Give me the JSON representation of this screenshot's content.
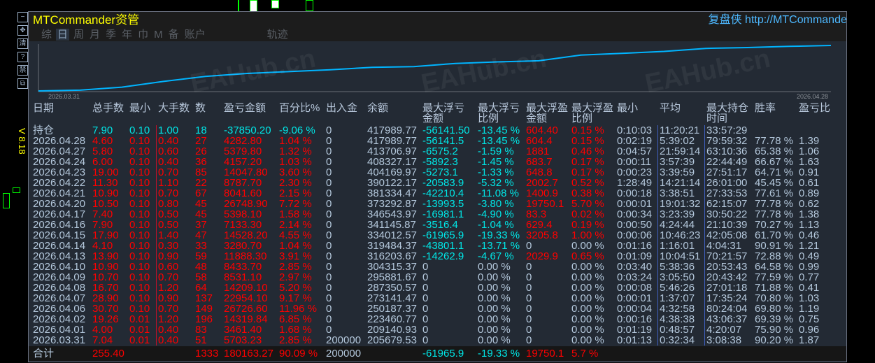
{
  "window": {
    "title": "MTCommander资管",
    "site": "复盘侠 http://MTCommander.com",
    "version": "V 8.18",
    "tabs": [
      {
        "label": "综",
        "active": false
      },
      {
        "label": "日",
        "active": true
      },
      {
        "label": "周",
        "active": false
      },
      {
        "label": "月",
        "active": false
      },
      {
        "label": "季",
        "active": false
      },
      {
        "label": "年",
        "active": false
      },
      {
        "label": "巾",
        "active": false
      },
      {
        "label": "M",
        "active": false
      },
      {
        "label": "备",
        "active": false
      },
      {
        "label": "账户",
        "active": false
      },
      {
        "label": "轨迹",
        "active": false
      }
    ],
    "side_buttons": [
      {
        "name": "minimize",
        "glyph": "−"
      },
      {
        "name": "move",
        "glyph": "✥"
      },
      {
        "name": "clear",
        "glyph": "清"
      },
      {
        "name": "help",
        "glyph": "?"
      },
      {
        "name": "disable",
        "glyph": "禁"
      },
      {
        "name": "restore",
        "glyph": "⧉"
      }
    ],
    "watermark": "EAHub.cn"
  },
  "equity_chart": {
    "start_label": "2026.03.31",
    "end_label": "2026.04.28",
    "line_color": "#00b4ff"
  },
  "colors": {
    "positive": "#ff0000",
    "negative": "#00e6e6",
    "neutral": "#b4c8dc",
    "title": "#ffff00",
    "link": "#4db8ff"
  },
  "table": {
    "headers": [
      "日期",
      "总手数",
      "最小",
      "大手数",
      "数",
      "盈亏金额",
      "百分比%",
      "出入金",
      "余额",
      "最大浮亏金额",
      "最大浮亏比例",
      "最大浮盈金额",
      "最大浮盈比例",
      "最小",
      "平均",
      "最大持仓时间",
      "胜率",
      "盈亏比"
    ],
    "rows": [
      [
        "持仓",
        "7.90",
        "0.10",
        "1.00",
        "18",
        "-37850.20",
        "-9.06 %",
        "0",
        "417989.77",
        "-56141.50",
        "-13.45 %",
        "604.40",
        "0.15 %",
        "0:10:03",
        "11:20:21",
        "33:57:29",
        "",
        ""
      ],
      [
        "2026.04.28",
        "4.60",
        "0.10",
        "0.40",
        "27",
        "4282.80",
        "1.04 %",
        "0",
        "417989.77",
        "-56141.5",
        "-13.45 %",
        "604.4",
        "0.15 %",
        "0:02:19",
        "5:39:02",
        "79:59:32",
        "77.78 %",
        "1.39"
      ],
      [
        "2026.04.27",
        "5.80",
        "0.10",
        "0.60",
        "26",
        "5379.80",
        "1.32 %",
        "0",
        "413706.97",
        "-6575.2",
        "-1.59 %",
        "1881",
        "0.46 %",
        "0:04:57",
        "21:59:14",
        "63:10:36",
        "65.38 %",
        "1.06"
      ],
      [
        "2026.04.24",
        "6.00",
        "0.10",
        "0.40",
        "36",
        "4157.20",
        "1.03 %",
        "0",
        "408327.17",
        "-5892.3",
        "-1.45 %",
        "683.7",
        "0.17 %",
        "0:00:11",
        "3:57:39",
        "22:44:49",
        "66.67 %",
        "1.63"
      ],
      [
        "2026.04.23",
        "19.00",
        "0.10",
        "0.70",
        "85",
        "14047.80",
        "3.60 %",
        "0",
        "404169.97",
        "-5273.1",
        "-1.33 %",
        "648.8",
        "0.17 %",
        "0:00:23",
        "3:39:59",
        "27:51:17",
        "64.71 %",
        "0.91"
      ],
      [
        "2026.04.22",
        "11.30",
        "0.10",
        "1.10",
        "22",
        "8787.70",
        "2.30 %",
        "0",
        "390122.17",
        "-20583.9",
        "-5.32 %",
        "2002.7",
        "0.52 %",
        "1:28:49",
        "14:21:14",
        "26:01:00",
        "45.45 %",
        "0.61"
      ],
      [
        "2026.04.21",
        "10.90",
        "0.10",
        "0.70",
        "67",
        "8041.60",
        "2.15 %",
        "0",
        "381334.47",
        "-42210.4",
        "-11.08 %",
        "1400.9",
        "0.38 %",
        "0:00:18",
        "3:38:51",
        "27:33:53",
        "77.61 %",
        "0.89"
      ],
      [
        "2026.04.20",
        "10.50",
        "0.10",
        "0.80",
        "45",
        "26748.90",
        "7.72 %",
        "0",
        "373292.87",
        "-13993.5",
        "-3.80 %",
        "19750.1",
        "5.70 %",
        "0:00:01",
        "19:01:32",
        "62:15:07",
        "77.78 %",
        "0.62"
      ],
      [
        "2026.04.17",
        "7.40",
        "0.10",
        "0.50",
        "45",
        "5398.10",
        "1.58 %",
        "0",
        "346543.97",
        "-16981.1",
        "-4.90 %",
        "83.3",
        "0.02 %",
        "0:00:34",
        "3:23:39",
        "30:50:22",
        "77.78 %",
        "1.38"
      ],
      [
        "2026.04.16",
        "7.90",
        "0.10",
        "0.50",
        "37",
        "7133.30",
        "2.14 %",
        "0",
        "341145.87",
        "-3516.4",
        "-1.04 %",
        "629.4",
        "0.19 %",
        "0:00:50",
        "4:24:44",
        "21:10:39",
        "70.27 %",
        "1.13"
      ],
      [
        "2026.04.15",
        "17.90",
        "0.10",
        "1.40",
        "47",
        "14528.20",
        "4.55 %",
        "0",
        "334012.57",
        "-61965.9",
        "-19.33 %",
        "3205.8",
        "1.00 %",
        "0:00:06",
        "10:46:23",
        "42:05:08",
        "61.70 %",
        "0.46"
      ],
      [
        "2026.04.14",
        "4.10",
        "0.10",
        "0.30",
        "33",
        "3280.70",
        "1.04 %",
        "0",
        "319484.37",
        "-43801.1",
        "-13.71 %",
        "0",
        "0.00 %",
        "0:01:16",
        "1:16:01",
        "4:04:31",
        "90.91 %",
        "1.21"
      ],
      [
        "2026.04.13",
        "13.90",
        "0.10",
        "0.90",
        "59",
        "11888.30",
        "3.91 %",
        "0",
        "316203.67",
        "-14262.9",
        "-4.67 %",
        "2029.9",
        "0.65 %",
        "0:01:09",
        "10:04:51",
        "70:21:57",
        "72.88 %",
        "0.49"
      ],
      [
        "2026.04.10",
        "10.90",
        "0.10",
        "0.60",
        "48",
        "8433.70",
        "2.85 %",
        "0",
        "304315.37",
        "0",
        "0.00 %",
        "0",
        "0.00 %",
        "0:03:40",
        "5:38:36",
        "20:53:43",
        "64.58 %",
        "0.99"
      ],
      [
        "2026.04.09",
        "10.70",
        "0.10",
        "0.70",
        "58",
        "8531.10",
        "2.97 %",
        "0",
        "295881.67",
        "0",
        "0.00 %",
        "0",
        "0.00 %",
        "0:03:24",
        "3:05:50",
        "20:43:42",
        "77.59 %",
        "0.77"
      ],
      [
        "2026.04.08",
        "16.70",
        "0.10",
        "1.20",
        "64",
        "14209.10",
        "5.20 %",
        "0",
        "287350.57",
        "0",
        "0.00 %",
        "0",
        "0.00 %",
        "0:00:08",
        "5:46:26",
        "27:01:18",
        "71.88 %",
        "0.41"
      ],
      [
        "2026.04.07",
        "28.90",
        "0.10",
        "0.90",
        "137",
        "22954.10",
        "9.17 %",
        "0",
        "273141.47",
        "0",
        "0.00 %",
        "0",
        "0.00 %",
        "0:00:01",
        "1:37:07",
        "17:35:24",
        "70.80 %",
        "1.03"
      ],
      [
        "2026.04.06",
        "30.70",
        "0.10",
        "0.70",
        "149",
        "26726.60",
        "11.96 %",
        "0",
        "250187.37",
        "0",
        "0.00 %",
        "0",
        "0.00 %",
        "0:00:04",
        "4:32:58",
        "80:24:04",
        "69.80 %",
        "1.19"
      ],
      [
        "2026.04.02",
        "19.26",
        "0.01",
        "1.20",
        "196",
        "14319.84",
        "6.85 %",
        "0",
        "223460.77",
        "0",
        "0.00 %",
        "0",
        "0.00 %",
        "0:00:16",
        "4:38:38",
        "43:06:37",
        "69.39 %",
        "0.75"
      ],
      [
        "2026.04.01",
        "4.00",
        "0.01",
        "0.40",
        "83",
        "3461.40",
        "1.68 %",
        "0",
        "209140.93",
        "0",
        "0.00 %",
        "0",
        "0.00 %",
        "0:01:19",
        "0:48:57",
        "4:20:07",
        "75.90 %",
        "0.96"
      ],
      [
        "2026.03.31",
        "7.04",
        "0.01",
        "0.40",
        "51",
        "5703.23",
        "2.85 %",
        "200000",
        "205679.53",
        "0",
        "0.00 %",
        "0",
        "0.00 %",
        "0:01:13",
        "0:32:34",
        "3:08:38",
        "90.20 %",
        "1.87"
      ]
    ],
    "total": [
      "合计",
      "255.40",
      "",
      "",
      "1333",
      "180163.27",
      "90.09 %",
      "200000",
      "",
      "-61965.9",
      "-19.33 %",
      "19750.1",
      "5.7 %",
      "",
      "",
      "",
      "",
      ""
    ]
  }
}
